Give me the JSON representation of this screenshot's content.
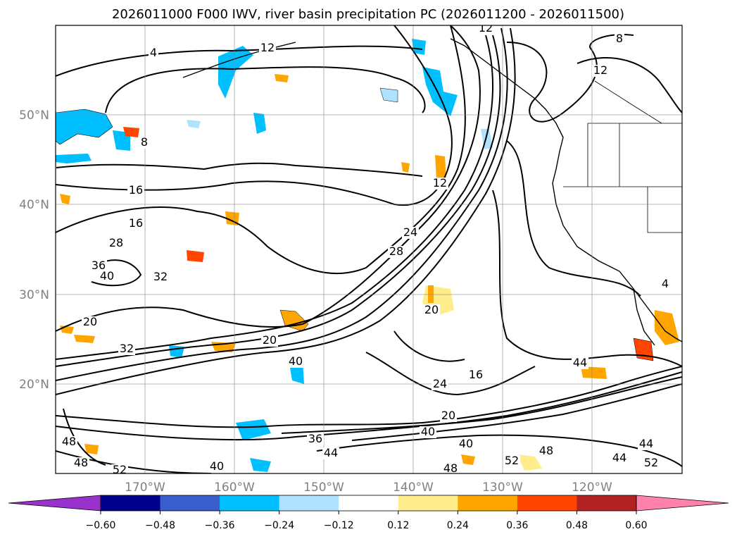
{
  "title": "2026011000 F000 IWV, river basin precipitation PC (2026011200 - 2026011500)",
  "map": {
    "lon_range": [
      -180,
      -110
    ],
    "lat_range": [
      10,
      60
    ],
    "lat_labels": [
      "50°N",
      "40°N",
      "30°N",
      "20°N"
    ],
    "lon_labels": [
      "170°W",
      "160°W",
      "150°W",
      "140°W",
      "130°W",
      "120°W"
    ],
    "grid": true,
    "iwv_contour_labels": [
      "4",
      "12",
      "8",
      "12",
      "8",
      "16",
      "16",
      "28",
      "36",
      "40",
      "32",
      "20",
      "32",
      "20",
      "12",
      "24",
      "28",
      "20",
      "40",
      "44",
      "16",
      "24",
      "20",
      "36",
      "40",
      "44",
      "48",
      "52",
      "48",
      "48",
      "44",
      "40",
      "52",
      "44",
      "48",
      "52",
      "40",
      "4",
      "12"
    ]
  },
  "colorbar": {
    "ticks": [
      "−0.60",
      "−0.48",
      "−0.36",
      "−0.24",
      "−0.12",
      "0.12",
      "0.24",
      "0.36",
      "0.48",
      "0.60"
    ],
    "bins": [
      {
        "color": "#9932cc"
      },
      {
        "color": "#00008b"
      },
      {
        "color": "#3a5fcd"
      },
      {
        "color": "#00bfff"
      },
      {
        "color": "#b0e2ff"
      },
      {
        "color": "#ffffff"
      },
      {
        "color": "#ffec8b"
      },
      {
        "color": "#ffa500"
      },
      {
        "color": "#ff4500"
      },
      {
        "color": "#b22222"
      },
      {
        "color": "#ff82ab"
      }
    ],
    "extend": "both"
  }
}
